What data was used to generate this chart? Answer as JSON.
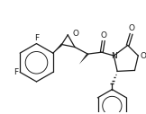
{
  "bg_color": "#ffffff",
  "line_color": "#1a1a1a",
  "line_width": 0.9,
  "font_size": 6.5,
  "fig_width": 1.62,
  "fig_height": 1.27,
  "dpi": 100,
  "xlim": [
    0,
    162
  ],
  "ylim": [
    0,
    127
  ]
}
